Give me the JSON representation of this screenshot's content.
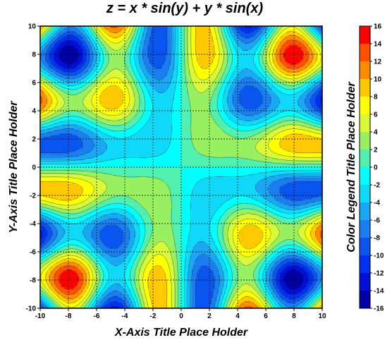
{
  "chart_data": {
    "type": "contour",
    "title": "z = x * sin(y) + y * sin(x)",
    "function": "z = x*sin(y) + y*sin(x)",
    "xlabel": "X-Axis Title Place Holder",
    "ylabel": "Y-Axis Title Place Holder",
    "colorbar_label": "Color Legend Title Place Holder",
    "xlim": [
      -10,
      10
    ],
    "ylim": [
      -10,
      10
    ],
    "x_ticks": [
      -10,
      -8,
      -6,
      -4,
      -2,
      0,
      2,
      4,
      6,
      8,
      10
    ],
    "y_ticks": [
      -10,
      -8,
      -6,
      -4,
      -2,
      0,
      2,
      4,
      6,
      8,
      10
    ],
    "grid": true,
    "grid_style": "dotted",
    "levels": [
      -16,
      -14,
      -12,
      -10,
      -8,
      -6,
      -4,
      -2,
      0,
      2,
      4,
      6,
      8,
      10,
      12,
      14,
      16
    ],
    "colorbar_ticks": [
      16,
      14,
      12,
      10,
      8,
      6,
      4,
      2,
      0,
      -2,
      -4,
      -6,
      -8,
      -10,
      -12,
      -14,
      -16
    ],
    "colors": [
      "#0000a6",
      "#0010d8",
      "#0030f0",
      "#0a55f0",
      "#1a7ef0",
      "#1aa8f5",
      "#10d8f8",
      "#00ffff",
      "#50f0b0",
      "#98f060",
      "#d8f838",
      "#ffff00",
      "#ffc800",
      "#ff8c00",
      "#ff5000",
      "#ff0000"
    ],
    "extrema": [
      {
        "x": -8,
        "y": 8,
        "z": -15.8,
        "type": "min"
      },
      {
        "x": 8,
        "y": -8,
        "z": -15.8,
        "type": "min"
      },
      {
        "x": -8,
        "y": -8,
        "z": 15.8,
        "type": "max"
      },
      {
        "x": 8,
        "y": 8,
        "z": 15.8,
        "type": "max"
      }
    ],
    "legend_placement": "right"
  }
}
